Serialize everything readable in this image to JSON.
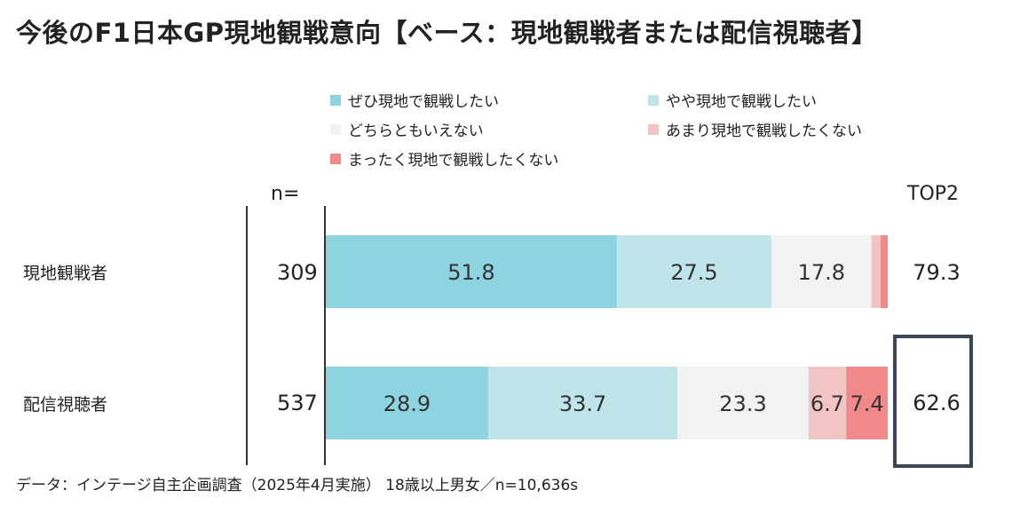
{
  "title": "今後のF1日本GP現地観戦意向【ベース：現地観戦者または配信視聴者】",
  "legend": [
    {
      "label": "ぜひ現地で観戦したい",
      "color": "#8ed4e0"
    },
    {
      "label": "やや現地で観戦したい",
      "color": "#bfe5ea"
    },
    {
      "label": "どちらともいえない",
      "color": "#f2f2f2"
    },
    {
      "label": "あまり現地で観戦したくない",
      "color": "#f2c4c4"
    },
    {
      "label": "まったく現地で観戦したくない",
      "color": "#f08a8a"
    }
  ],
  "headers": {
    "n": "n=",
    "top2": "TOP2"
  },
  "chart_data": {
    "type": "bar",
    "orientation": "horizontal",
    "stacked": true,
    "categories": [
      "現地観戦者",
      "配信視聴者"
    ],
    "n": [
      309,
      537
    ],
    "series": [
      {
        "name": "ぜひ現地で観戦したい",
        "values": [
          51.8,
          28.9
        ],
        "labels": [
          "51.8",
          "28.9"
        ]
      },
      {
        "name": "やや現地で観戦したい",
        "values": [
          27.5,
          33.7
        ],
        "labels": [
          "27.5",
          "33.7"
        ]
      },
      {
        "name": "どちらともいえない",
        "values": [
          17.8,
          23.3
        ],
        "labels": [
          "17.8",
          "23.3"
        ]
      },
      {
        "name": "あまり現地で観戦したくない",
        "values": [
          1.6,
          6.7
        ],
        "labels": [
          "",
          "6.7"
        ]
      },
      {
        "name": "まったく現地で観戦したくない",
        "values": [
          1.3,
          7.4
        ],
        "labels": [
          "",
          "7.4"
        ]
      }
    ],
    "top2": [
      "79.3",
      "62.6"
    ],
    "xlim": [
      0,
      100
    ]
  },
  "footnote": "データ：インテージ自主企画調査（2025年4月実施） 18歳以上男女／n=10,636s"
}
